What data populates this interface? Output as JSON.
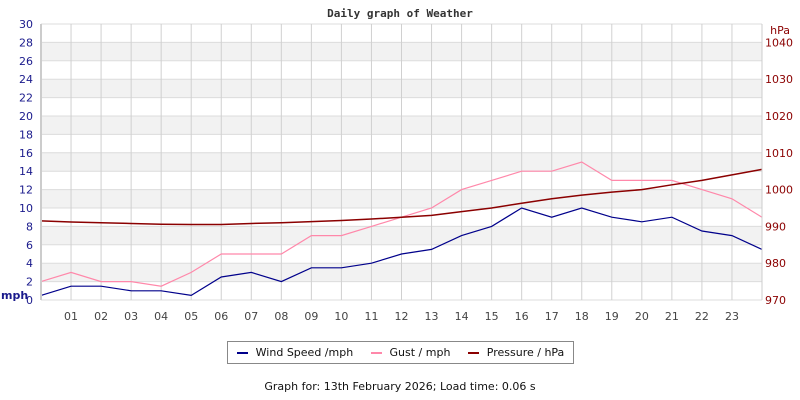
{
  "chart_data": {
    "type": "line",
    "title": "Daily graph of Weather",
    "ylabel_left": "mph",
    "ylabel_right": "hPa",
    "ylim_left": [
      0,
      30
    ],
    "ylim_right": [
      970,
      1045
    ],
    "yticks_left": [
      0,
      2,
      4,
      6,
      8,
      10,
      12,
      14,
      16,
      18,
      20,
      22,
      24,
      26,
      28,
      30
    ],
    "yticks_right": [
      970,
      980,
      990,
      1000,
      1010,
      1020,
      1030,
      1040
    ],
    "xlim": [
      0,
      24
    ],
    "xticks": [
      "01",
      "02",
      "03",
      "04",
      "05",
      "06",
      "07",
      "08",
      "09",
      "10",
      "11",
      "12",
      "13",
      "14",
      "15",
      "16",
      "17",
      "18",
      "19",
      "20",
      "21",
      "22",
      "23"
    ],
    "grid": true,
    "legend_placement": "bottom",
    "x": [
      0,
      1,
      2,
      3,
      4,
      5,
      6,
      7,
      8,
      9,
      10,
      11,
      12,
      13,
      14,
      15,
      16,
      17,
      18,
      19,
      20,
      21,
      22,
      23,
      24
    ],
    "series": [
      {
        "name": "Wind Speed /mph",
        "axis": "left",
        "color": "#00008b",
        "values": [
          0.5,
          1.5,
          1.5,
          1,
          1,
          0.5,
          2.5,
          3,
          2,
          3.5,
          3.5,
          4,
          5,
          5.5,
          7,
          8,
          10,
          9,
          10,
          9,
          8.5,
          9,
          7.5,
          7,
          5.5
        ]
      },
      {
        "name": "Gust / mph",
        "axis": "left",
        "color": "#ff88aa",
        "values": [
          2,
          3,
          2,
          2,
          1.5,
          3,
          5,
          5,
          5,
          7,
          7,
          8,
          9,
          10,
          12,
          13,
          14,
          14,
          15,
          13,
          13,
          13,
          12,
          11,
          9
        ]
      },
      {
        "name": "Pressure / hPa",
        "axis": "right",
        "color": "#8b0000",
        "values": [
          991.5,
          991.2,
          991,
          990.8,
          990.6,
          990.5,
          990.5,
          990.8,
          991,
          991.3,
          991.6,
          992,
          992.5,
          993,
          994,
          995,
          996.3,
          997.5,
          998.5,
          999.3,
          1000,
          1001.3,
          1002.5,
          1004,
          1005.5
        ]
      }
    ]
  },
  "footer": "Graph for: 13th February 2026; Load time: 0.06 s"
}
